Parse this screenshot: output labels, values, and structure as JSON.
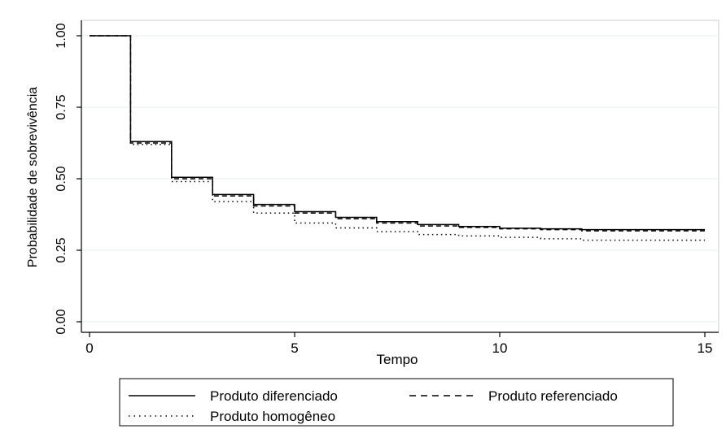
{
  "chart_data": {
    "type": "line",
    "step": true,
    "xlabel": "Tempo",
    "ylabel": "Probabilidade de sobrevivência",
    "xlim": [
      0,
      15
    ],
    "ylim": [
      0,
      1
    ],
    "x_ticks": [
      0,
      5,
      10,
      15
    ],
    "y_ticks": [
      0.0,
      0.25,
      0.5,
      0.75,
      1.0
    ],
    "x_tick_labels": [
      "0",
      "5",
      "10",
      "15"
    ],
    "y_tick_labels": [
      "0.00",
      "0.25",
      "0.50",
      "0.75",
      "1.00"
    ],
    "grid": "horizontal",
    "legend_position": "bottom",
    "x": [
      0,
      1,
      2,
      3,
      4,
      5,
      6,
      7,
      8,
      9,
      10,
      11,
      12,
      13,
      14,
      15
    ],
    "series": [
      {
        "name": "Produto diferenciado",
        "style": "solid",
        "values": [
          1.0,
          0.63,
          0.505,
          0.445,
          0.41,
          0.385,
          0.365,
          0.35,
          0.34,
          0.333,
          0.327,
          0.325,
          0.322,
          0.322,
          0.322,
          0.322
        ]
      },
      {
        "name": "Produto referenciado",
        "style": "dashed",
        "values": [
          1.0,
          0.625,
          0.5,
          0.44,
          0.405,
          0.38,
          0.36,
          0.345,
          0.335,
          0.33,
          0.325,
          0.322,
          0.318,
          0.318,
          0.318,
          0.318
        ]
      },
      {
        "name": "Produto homogêneo",
        "style": "dotted",
        "values": [
          1.0,
          0.62,
          0.49,
          0.42,
          0.38,
          0.345,
          0.328,
          0.315,
          0.305,
          0.3,
          0.295,
          0.29,
          0.285,
          0.285,
          0.285,
          0.285
        ]
      }
    ]
  }
}
